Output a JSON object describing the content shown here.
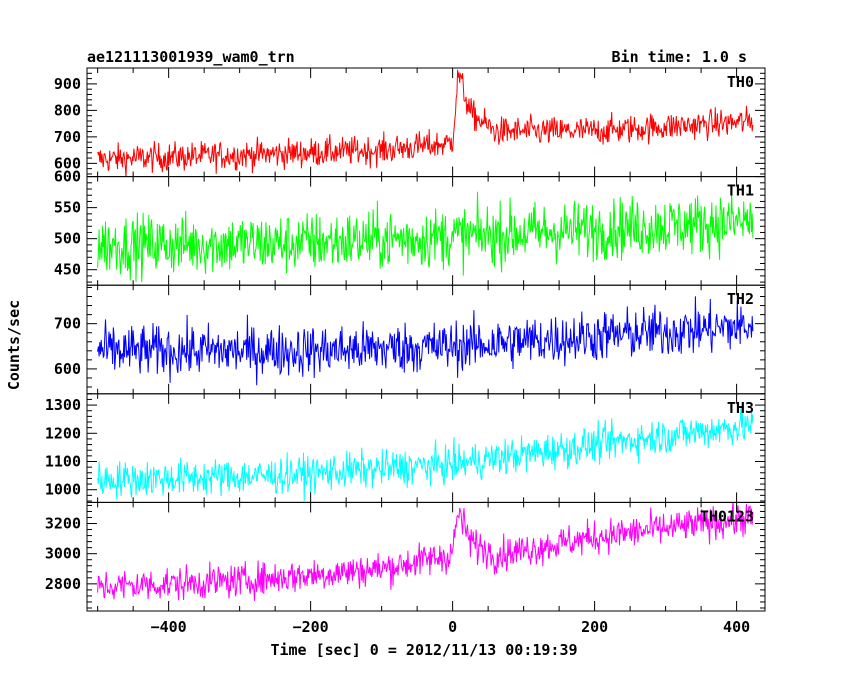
{
  "chart_data": {
    "type": "line",
    "title": "ae121113001939_wam0_trn",
    "subtitle": "Bin time: 1.0 s",
    "xlabel": "Time [sec] 0 = 2012/11/13 00:19:39",
    "ylabel": "Counts/sec",
    "xlim": [
      -515,
      440
    ],
    "x_range": [
      -500,
      423
    ],
    "bin_time": 1.0,
    "x_ticks": [
      -400,
      -200,
      0,
      200,
      400
    ],
    "x_tick_labels": [
      "−400",
      "−200",
      "0",
      "200",
      "400"
    ],
    "grid": false,
    "legend": "none",
    "panels": [
      {
        "name": "TH0",
        "color": "#ff0000",
        "ylim": [
          550,
          960
        ],
        "y_ticks": [
          600,
          700,
          800,
          900
        ],
        "trend": [
          [
            -500,
            615
          ],
          [
            -300,
            632
          ],
          [
            -100,
            650
          ],
          [
            -5,
            675
          ],
          [
            0,
            690
          ],
          [
            8,
            940
          ],
          [
            25,
            790
          ],
          [
            60,
            720
          ],
          [
            200,
            722
          ],
          [
            423,
            758
          ]
        ],
        "noise_amplitude": 27
      },
      {
        "name": "TH1",
        "color": "#00ff00",
        "ylim": [
          425,
          600
        ],
        "y_ticks": [
          450,
          500,
          550,
          600
        ],
        "trend": [
          [
            -500,
            490
          ],
          [
            -250,
            492
          ],
          [
            0,
            503
          ],
          [
            200,
            515
          ],
          [
            423,
            528
          ]
        ],
        "noise_amplitude": 24
      },
      {
        "name": "TH2",
        "color": "#0000ff",
        "ylim": [
          545,
          785
        ],
        "y_ticks": [
          600,
          700
        ],
        "trend": [
          [
            -500,
            640
          ],
          [
            -200,
            640
          ],
          [
            0,
            650
          ],
          [
            200,
            672
          ],
          [
            423,
            695
          ]
        ],
        "noise_amplitude": 28
      },
      {
        "name": "TH3",
        "color": "#00ffff",
        "ylim": [
          955,
          1340
        ],
        "y_ticks": [
          1000,
          1100,
          1200,
          1300
        ],
        "trend": [
          [
            -500,
            1035
          ],
          [
            -250,
            1050
          ],
          [
            0,
            1090
          ],
          [
            200,
            1160
          ],
          [
            423,
            1230
          ]
        ],
        "noise_amplitude": 32
      },
      {
        "name": "TH0123",
        "color": "#ff00ff",
        "ylim": [
          2620,
          3340
        ],
        "y_ticks": [
          2800,
          3000,
          3200
        ],
        "trend": [
          [
            -500,
            2780
          ],
          [
            -300,
            2820
          ],
          [
            -100,
            2900
          ],
          [
            -5,
            2990
          ],
          [
            0,
            3020
          ],
          [
            8,
            3280
          ],
          [
            25,
            3080
          ],
          [
            60,
            2990
          ],
          [
            200,
            3110
          ],
          [
            423,
            3240
          ]
        ],
        "noise_amplitude": 55
      }
    ]
  }
}
